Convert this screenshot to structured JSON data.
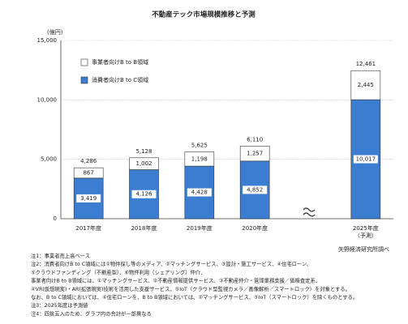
{
  "chart_data": {
    "type": "bar",
    "title": "不動産テック市場規模推移と予測",
    "y_axis_label": "(億円)",
    "categories": [
      "2017年度",
      "2018年度",
      "2019年度",
      "2020年度",
      null,
      "2025年度\n（予測）"
    ],
    "series": [
      {
        "name": "消費者向けB to C領域",
        "color": "#3b7dd0",
        "values": [
          3419,
          4126,
          4428,
          4852,
          null,
          10017
        ],
        "value_labels": [
          "3,419",
          "4,126",
          "4,428",
          "4,852",
          null,
          "10,017"
        ]
      },
      {
        "name": "事業者向けB to B領域",
        "color": "#ffffff",
        "values": [
          867,
          1002,
          1198,
          1257,
          null,
          2445
        ],
        "value_labels": [
          "867",
          "1,002",
          "1,198",
          "1,257",
          null,
          "2,445"
        ]
      }
    ],
    "totals": [
      4286,
      5128,
      5625,
      6110,
      null,
      12461
    ],
    "totals_labels": [
      "4,286",
      "5,128",
      "5,625",
      "6,110",
      null,
      "12,461"
    ],
    "ylim": [
      0,
      15000
    ],
    "yticks": [
      0,
      {
        "value": 5000,
        "label": "5,000"
      },
      {
        "value": 10000,
        "label": "10,000"
      },
      {
        "value": 15000,
        "label": "15,000"
      }
    ],
    "grid": true,
    "legend": "top-left",
    "source": "矢野経済研究所調べ",
    "notes": [
      "注1：事業者売上高ベース",
      "注2：消費者向けB to C領域には①物件探し等のメディア、②マッチングサービス、③設計・施工サービス、④住宅ローン、",
      "⑤クラウドファンディング（不動産型）、⑥物件利用（シェアリング）仲介、",
      "事業者向けB to B領域には、①マッチングサービス、②不動産情報提供サービス、③不動産仲介・管理業務支援／価格査定系、",
      "④VR(仮想現実)・AR(拡張現実)技術を活用した支援サービス、⑤IoT（クラウド型監視カメラ／画像解析／スマートロック）を対象とする。",
      "なお、B to C領域においては、④住宅ローンを、B to B領域においては、②マッチングサービス、⑤IoT（スマートロック）を除くものとする。",
      "注3：2025年度は予測値",
      "注4：四捨五入のため、グラフ内の合計が一部異なる"
    ]
  }
}
